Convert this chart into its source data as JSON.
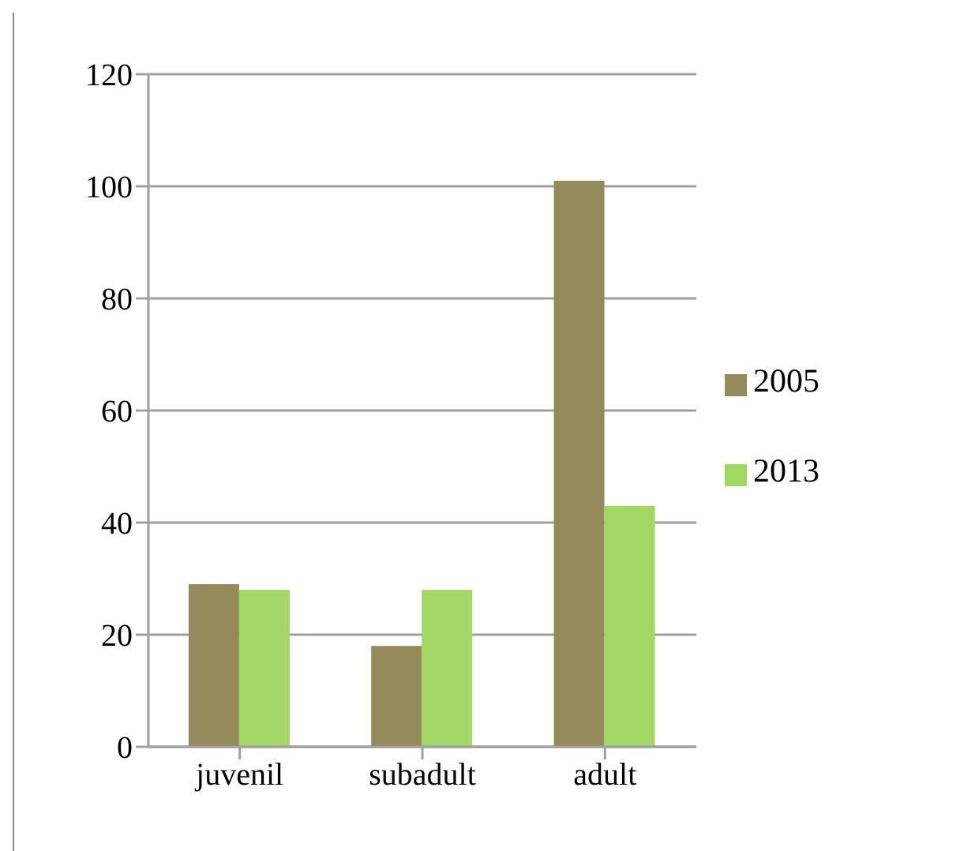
{
  "chart_data": {
    "type": "bar",
    "categories": [
      "juvenil",
      "subadult",
      "adult"
    ],
    "series": [
      {
        "name": "2005",
        "color": "#948a5a",
        "values": [
          29,
          18,
          101
        ]
      },
      {
        "name": "2013",
        "color": "#a2d665",
        "values": [
          28,
          28,
          43
        ]
      }
    ],
    "ylim": [
      0,
      120
    ],
    "yticks": [
      0,
      20,
      40,
      60,
      80,
      100,
      120
    ],
    "grid": "y",
    "legend": "right"
  }
}
